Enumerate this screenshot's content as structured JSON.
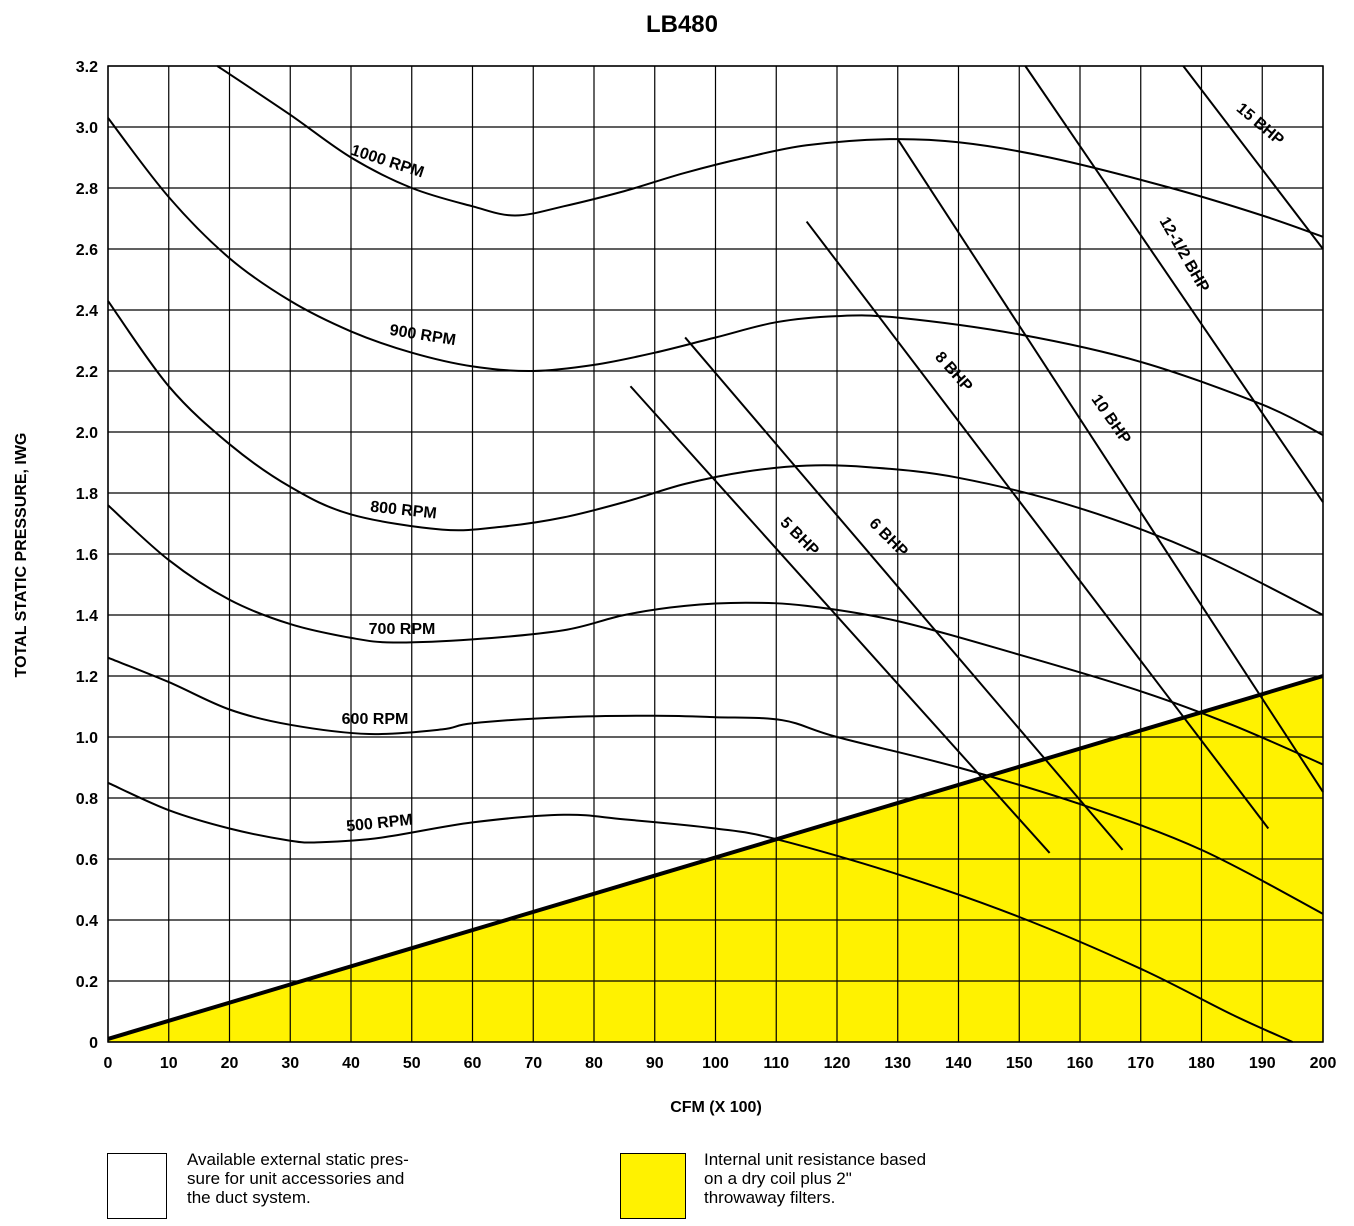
{
  "chart_data": {
    "type": "line",
    "title": "LB480",
    "xlabel": "CFM (X 100)",
    "ylabel": "TOTAL STATIC PRESSURE, IWG",
    "xlim": [
      0,
      200
    ],
    "ylim": [
      0,
      3.2
    ],
    "grid": true,
    "x_ticks": [
      "0",
      "10",
      "20",
      "30",
      "40",
      "50",
      "60",
      "70",
      "80",
      "90",
      "100",
      "110",
      "120",
      "130",
      "140",
      "150",
      "160",
      "170",
      "180",
      "190",
      "200"
    ],
    "y_ticks": [
      "0",
      "0.2",
      "0.4",
      "0.6",
      "0.8",
      "1.0",
      "1.2",
      "1.4",
      "1.6",
      "1.8",
      "2.0",
      "2.2",
      "2.4",
      "2.6",
      "2.8",
      "3.0",
      "3.2"
    ],
    "rpm_series": [
      {
        "name": "500 RPM",
        "points": [
          [
            0,
            0.85
          ],
          [
            10,
            0.76
          ],
          [
            20,
            0.7
          ],
          [
            30,
            0.66
          ],
          [
            35,
            0.655
          ],
          [
            45,
            0.67
          ],
          [
            60,
            0.72
          ],
          [
            75,
            0.745
          ],
          [
            85,
            0.73
          ],
          [
            100,
            0.7
          ],
          [
            110,
            0.665
          ],
          [
            130,
            0.55
          ],
          [
            150,
            0.41
          ],
          [
            170,
            0.24
          ],
          [
            185,
            0.09
          ],
          [
            195,
            0.0
          ]
        ]
      },
      {
        "name": "600 RPM",
        "points": [
          [
            0,
            1.26
          ],
          [
            10,
            1.18
          ],
          [
            20,
            1.09
          ],
          [
            30,
            1.04
          ],
          [
            43,
            1.01
          ],
          [
            55,
            1.025
          ],
          [
            60,
            1.045
          ],
          [
            75,
            1.065
          ],
          [
            90,
            1.07
          ],
          [
            100,
            1.065
          ],
          [
            111,
            1.055
          ],
          [
            120,
            1.0
          ],
          [
            140,
            0.9
          ],
          [
            160,
            0.78
          ],
          [
            180,
            0.63
          ],
          [
            200,
            0.42
          ]
        ]
      },
      {
        "name": "700 RPM",
        "points": [
          [
            0,
            1.76
          ],
          [
            10,
            1.58
          ],
          [
            20,
            1.45
          ],
          [
            30,
            1.37
          ],
          [
            40,
            1.325
          ],
          [
            47,
            1.31
          ],
          [
            60,
            1.32
          ],
          [
            75,
            1.35
          ],
          [
            85,
            1.4
          ],
          [
            95,
            1.43
          ],
          [
            105,
            1.44
          ],
          [
            115,
            1.43
          ],
          [
            130,
            1.38
          ],
          [
            150,
            1.27
          ],
          [
            170,
            1.15
          ],
          [
            185,
            1.04
          ],
          [
            200,
            0.91
          ]
        ]
      },
      {
        "name": "800 RPM",
        "points": [
          [
            0,
            2.43
          ],
          [
            10,
            2.15
          ],
          [
            20,
            1.96
          ],
          [
            30,
            1.82
          ],
          [
            40,
            1.73
          ],
          [
            55,
            1.68
          ],
          [
            65,
            1.69
          ],
          [
            75,
            1.72
          ],
          [
            85,
            1.77
          ],
          [
            95,
            1.83
          ],
          [
            105,
            1.87
          ],
          [
            115,
            1.89
          ],
          [
            125,
            1.885
          ],
          [
            140,
            1.85
          ],
          [
            160,
            1.75
          ],
          [
            180,
            1.6
          ],
          [
            200,
            1.4
          ]
        ]
      },
      {
        "name": "900 RPM",
        "points": [
          [
            0,
            3.03
          ],
          [
            10,
            2.77
          ],
          [
            20,
            2.57
          ],
          [
            30,
            2.43
          ],
          [
            40,
            2.33
          ],
          [
            50,
            2.26
          ],
          [
            60,
            2.215
          ],
          [
            70,
            2.2
          ],
          [
            80,
            2.22
          ],
          [
            90,
            2.26
          ],
          [
            100,
            2.31
          ],
          [
            110,
            2.36
          ],
          [
            120,
            2.38
          ],
          [
            130,
            2.375
          ],
          [
            150,
            2.32
          ],
          [
            170,
            2.23
          ],
          [
            190,
            2.09
          ],
          [
            200,
            1.99
          ]
        ]
      },
      {
        "name": "1000 RPM",
        "points": [
          [
            18,
            3.2
          ],
          [
            30,
            3.04
          ],
          [
            40,
            2.9
          ],
          [
            50,
            2.8
          ],
          [
            60,
            2.74
          ],
          [
            67,
            2.71
          ],
          [
            75,
            2.74
          ],
          [
            85,
            2.79
          ],
          [
            95,
            2.85
          ],
          [
            105,
            2.9
          ],
          [
            115,
            2.94
          ],
          [
            128,
            2.96
          ],
          [
            140,
            2.95
          ],
          [
            155,
            2.9
          ],
          [
            175,
            2.8
          ],
          [
            190,
            2.71
          ],
          [
            200,
            2.64
          ]
        ]
      }
    ],
    "bhp_series": [
      {
        "name": "5 BHP",
        "points": [
          [
            86,
            2.15
          ],
          [
            155,
            0.62
          ]
        ]
      },
      {
        "name": "6 BHP",
        "points": [
          [
            95,
            2.31
          ],
          [
            167,
            0.63
          ]
        ]
      },
      {
        "name": "8 BHP",
        "points": [
          [
            115,
            2.69
          ],
          [
            191,
            0.7
          ]
        ]
      },
      {
        "name": "10 BHP",
        "points": [
          [
            130,
            2.96
          ],
          [
            200,
            0.82
          ]
        ]
      },
      {
        "name": "12-1/2 BHP",
        "points": [
          [
            151,
            3.2
          ],
          [
            200,
            1.77
          ]
        ]
      },
      {
        "name": "15 BHP",
        "points": [
          [
            177,
            3.2
          ],
          [
            200,
            2.6
          ]
        ]
      }
    ],
    "internal_resistance": {
      "points": [
        [
          0,
          0.01
        ],
        [
          200,
          1.2
        ]
      ],
      "color": "#FFF200"
    }
  },
  "legend": {
    "available": {
      "text_lines": [
        "Available external static pres-",
        "sure for unit accessories and",
        "the duct system."
      ],
      "color": "#FFFFFF"
    },
    "internal": {
      "text_lines": [
        "Internal unit resistance based",
        "on a dry coil plus 2\"",
        "throwaway filters."
      ],
      "color": "#FFF200"
    }
  }
}
